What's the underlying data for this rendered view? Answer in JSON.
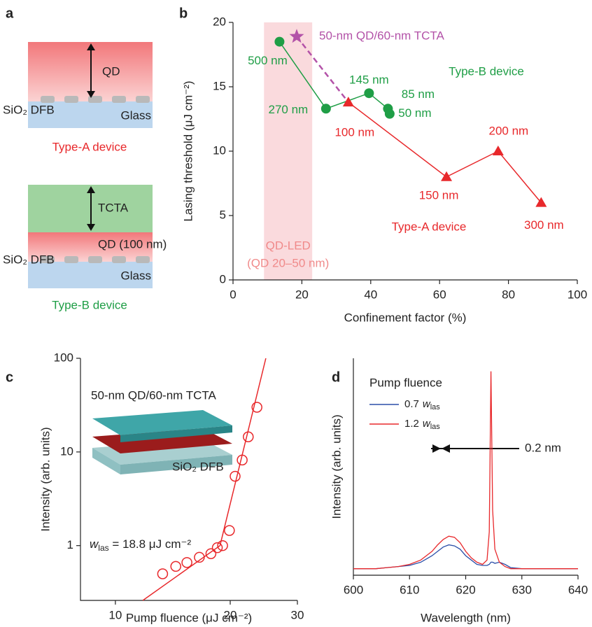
{
  "panel_labels": [
    "a",
    "b",
    "c",
    "d"
  ],
  "diagram": {
    "type_a": {
      "layers": [
        "QD",
        "Glass"
      ],
      "dfb": "SiO₂ DFB",
      "caption": "Type-A device"
    },
    "type_b": {
      "layers": [
        "TCTA",
        "QD (100 nm)",
        "Glass"
      ],
      "dfb": "SiO₂ DFB",
      "caption": "Type-B device"
    }
  },
  "chart_data": [
    {
      "type": "line",
      "xlabel": "Confinement factor (%)",
      "ylabel": "Lasing threshold (μJ cm⁻²)",
      "xlim": [
        0,
        100
      ],
      "xticks": [
        0,
        20,
        40,
        60,
        80,
        100
      ],
      "ylim": [
        0,
        20
      ],
      "yticks": [
        0,
        5,
        10,
        15,
        20
      ],
      "shaded_range": [
        9,
        23
      ],
      "shaded_label": [
        "QD-LED",
        "(QD 20–50 nm)"
      ],
      "series": [
        {
          "name": "Type-B device",
          "color": "#1f9e46",
          "marker": "circle",
          "x": [
            13.5,
            27,
            39.5,
            45,
            45.5
          ],
          "values": [
            18.5,
            13.3,
            14.5,
            13.3,
            12.9
          ],
          "point_labels": [
            "500 nm",
            "270 nm",
            "145 nm",
            "85 nm",
            "50 nm"
          ]
        },
        {
          "name": "Type-A device",
          "color": "#e8282b",
          "marker": "triangle",
          "x": [
            33.5,
            62,
            77,
            89.5
          ],
          "values": [
            13.8,
            8,
            10,
            6
          ],
          "point_labels": [
            "100 nm",
            "150 nm",
            "200 nm",
            "300 nm"
          ]
        },
        {
          "name": "50-nm QD/60-nm TCTA",
          "color": "#b352a8",
          "marker": "star",
          "x": [
            18.5
          ],
          "values": [
            18.9
          ]
        }
      ]
    },
    {
      "type": "scatter",
      "xlabel": "Pump fluence (μJ cm⁻²)",
      "ylabel": "Intensity (arb. units)",
      "xscale": "log",
      "yscale": "log",
      "xlim": [
        8.1,
        30
      ],
      "xticks": [
        10,
        20,
        30
      ],
      "ylim": [
        0.26,
        100
      ],
      "yticks": [
        1,
        10,
        100
      ],
      "inset_title": "50-nm QD/60-nm TCTA",
      "inset_label": "SiO₂ DFB",
      "annotation": {
        "symbol": "w",
        "subscript": "las",
        "text": " = 18.8 μJ cm⁻²"
      },
      "series": [
        {
          "color": "#e8282b",
          "marker": "open-circle",
          "x": [
            13.3,
            14.4,
            15.4,
            16.6,
            17.8,
            18.5,
            19.1,
            19.9,
            20.6,
            21.5,
            22.3,
            23.5
          ],
          "values": [
            0.5,
            0.6,
            0.66,
            0.75,
            0.82,
            0.95,
            1.0,
            1.45,
            5.5,
            8.2,
            14.5,
            30
          ]
        },
        {
          "color": "#e8282b",
          "marker": "none",
          "x": [
            11.8,
            18.8,
            24.8
          ],
          "values": [
            0.26,
            1.0,
            100
          ]
        }
      ]
    },
    {
      "type": "line",
      "xlabel": "Wavelength (nm)",
      "ylabel": "Intensity (arb. units)",
      "xlim": [
        600,
        640
      ],
      "xticks": [
        600,
        610,
        620,
        630,
        640
      ],
      "ylim": [
        0,
        1
      ],
      "legend_title": "Pump fluence",
      "legend_symbol": {
        "symbol": "w",
        "subscript": "las"
      },
      "annotation": "0.2 nm",
      "x": [
        600,
        602,
        604,
        606,
        608,
        610,
        612,
        613,
        614,
        615,
        616,
        617,
        618,
        619,
        620,
        621,
        622,
        623,
        623.8,
        624.2,
        624.5,
        624.8,
        625.2,
        626,
        627,
        628,
        630,
        632,
        634,
        636,
        638,
        640
      ],
      "series": [
        {
          "name": "0.7",
          "color": "#2b4fa8",
          "values": [
            0.03,
            0.03,
            0.03,
            0.035,
            0.04,
            0.045,
            0.06,
            0.075,
            0.09,
            0.11,
            0.13,
            0.14,
            0.135,
            0.12,
            0.09,
            0.07,
            0.05,
            0.045,
            0.045,
            0.05,
            0.06,
            0.06,
            0.055,
            0.06,
            0.05,
            0.035,
            0.03,
            0.03,
            0.03,
            0.03,
            0.03,
            0.03
          ]
        },
        {
          "name": "1.2",
          "color": "#e8282b",
          "values": [
            0.03,
            0.03,
            0.03,
            0.035,
            0.04,
            0.05,
            0.07,
            0.09,
            0.11,
            0.14,
            0.165,
            0.18,
            0.175,
            0.15,
            0.11,
            0.08,
            0.06,
            0.05,
            0.07,
            0.2,
            0.94,
            0.3,
            0.12,
            0.06,
            0.04,
            0.03,
            0.03,
            0.03,
            0.03,
            0.03,
            0.03,
            0.03
          ]
        }
      ]
    }
  ]
}
